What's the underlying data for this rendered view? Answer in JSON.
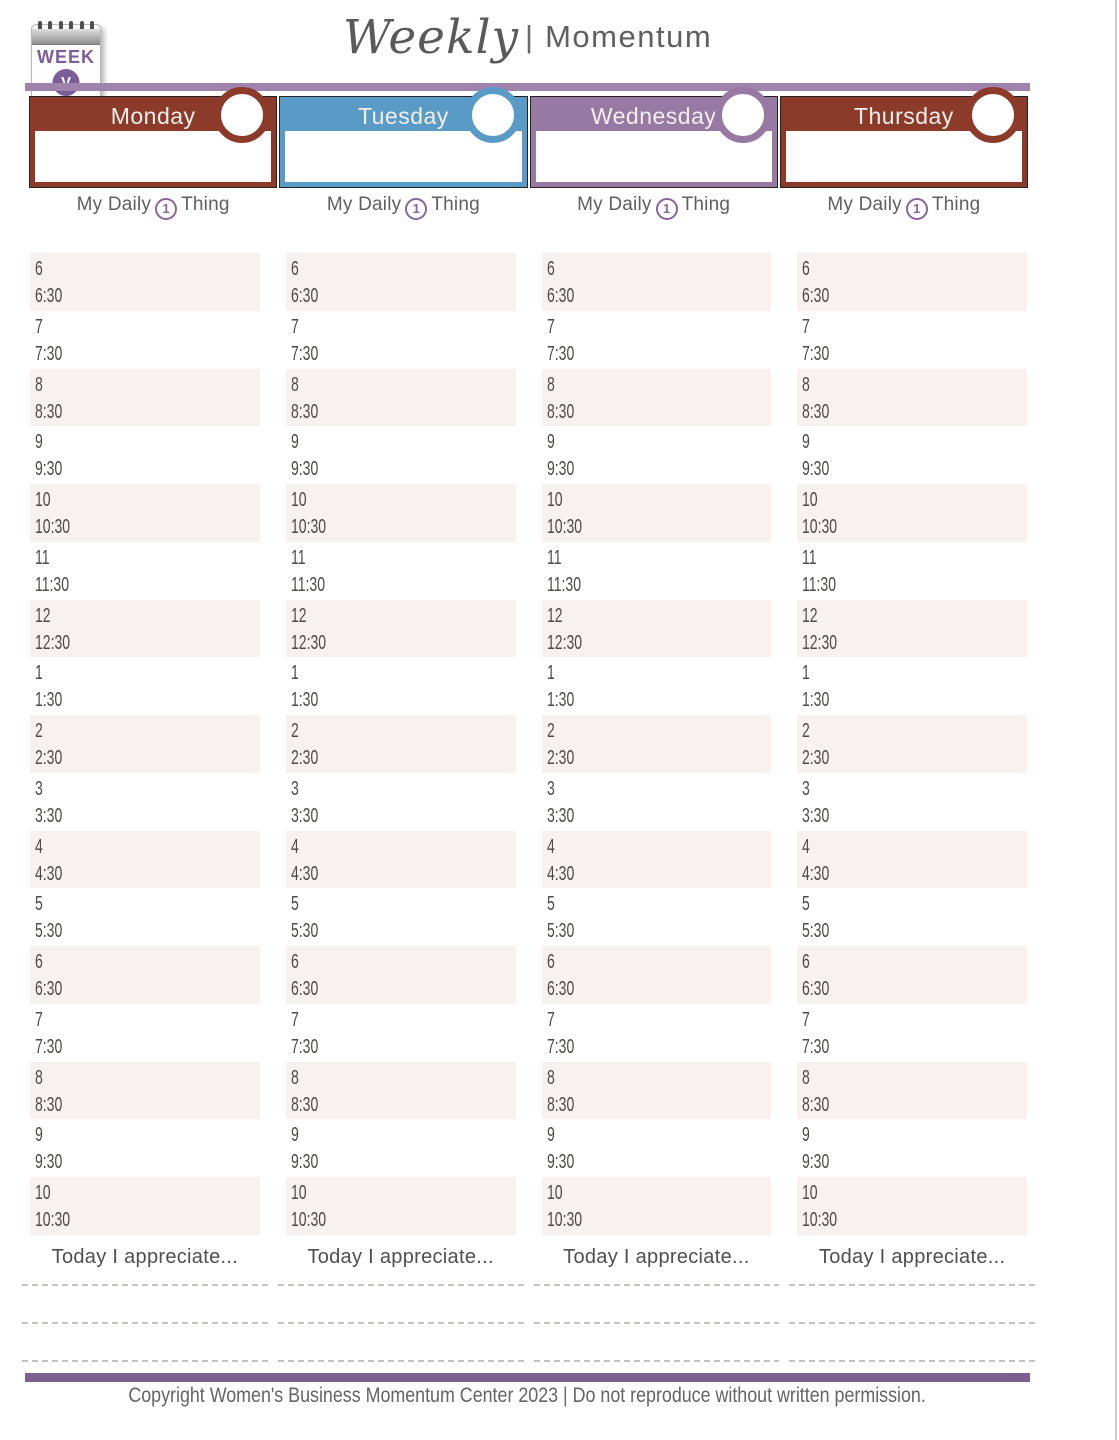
{
  "header": {
    "week_icon": {
      "label": "WEEK",
      "badge": "V"
    },
    "title_script": "Weekly",
    "title_separator": "|",
    "title_word": "Momentum"
  },
  "daily_thing": {
    "prefix": "My Daily",
    "number": "1",
    "suffix": "Thing"
  },
  "days": [
    {
      "name": "Monday",
      "color": "#8c3b2b"
    },
    {
      "name": "Tuesday",
      "color": "#5a9ac6"
    },
    {
      "name": "Wednesday",
      "color": "#9779a4"
    },
    {
      "name": "Thursday",
      "color": "#8c3b2b"
    }
  ],
  "schedule": {
    "blocks": [
      {
        "hour": "6",
        "half": "6:30"
      },
      {
        "hour": "7",
        "half": "7:30"
      },
      {
        "hour": "8",
        "half": "8:30"
      },
      {
        "hour": "9",
        "half": "9:30"
      },
      {
        "hour": "10",
        "half": "10:30"
      },
      {
        "hour": "11",
        "half": "11:30"
      },
      {
        "hour": "12",
        "half": "12:30"
      },
      {
        "hour": "1",
        "half": "1:30"
      },
      {
        "hour": "2",
        "half": "2:30"
      },
      {
        "hour": "3",
        "half": "3:30"
      },
      {
        "hour": "4",
        "half": "4:30"
      },
      {
        "hour": "5",
        "half": "5:30"
      },
      {
        "hour": "6",
        "half": "6:30"
      },
      {
        "hour": "7",
        "half": "7:30"
      },
      {
        "hour": "8",
        "half": "8:30"
      },
      {
        "hour": "9",
        "half": "9:30"
      },
      {
        "hour": "10",
        "half": "10:30"
      }
    ]
  },
  "appreciate": {
    "label": "Today I appreciate...",
    "line_count": 3
  },
  "footer": {
    "copyright": "Copyright Women's Business Momentum Center 2023 | Do not reproduce without written permission."
  },
  "colors": {
    "header_rule": "#a083ad",
    "footer_rule": "#7e6090",
    "row_shade": "#f7f2ef",
    "number_accent": "#8a63a0",
    "week_icon_purple": "#7b5e99"
  }
}
